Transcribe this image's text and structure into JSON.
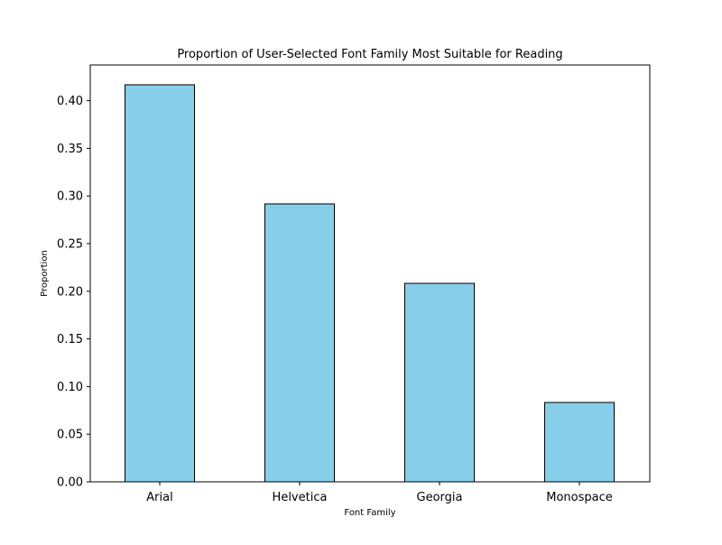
{
  "chart_data": {
    "type": "bar",
    "title": "Proportion of User-Selected Font Family Most Suitable for Reading",
    "xlabel": "Font Family",
    "ylabel": "Proportion",
    "categories": [
      "Arial",
      "Helvetica",
      "Georgia",
      "Monospace"
    ],
    "values": [
      0.4167,
      0.2917,
      0.2083,
      0.0833
    ],
    "ylim": [
      0,
      0.4375
    ],
    "yticks": [
      "0.00",
      "0.05",
      "0.10",
      "0.15",
      "0.20",
      "0.25",
      "0.30",
      "0.35",
      "0.40"
    ],
    "grid": false,
    "legend": "none",
    "bar_color": "#87CEEB",
    "edge_color": "#000000"
  }
}
